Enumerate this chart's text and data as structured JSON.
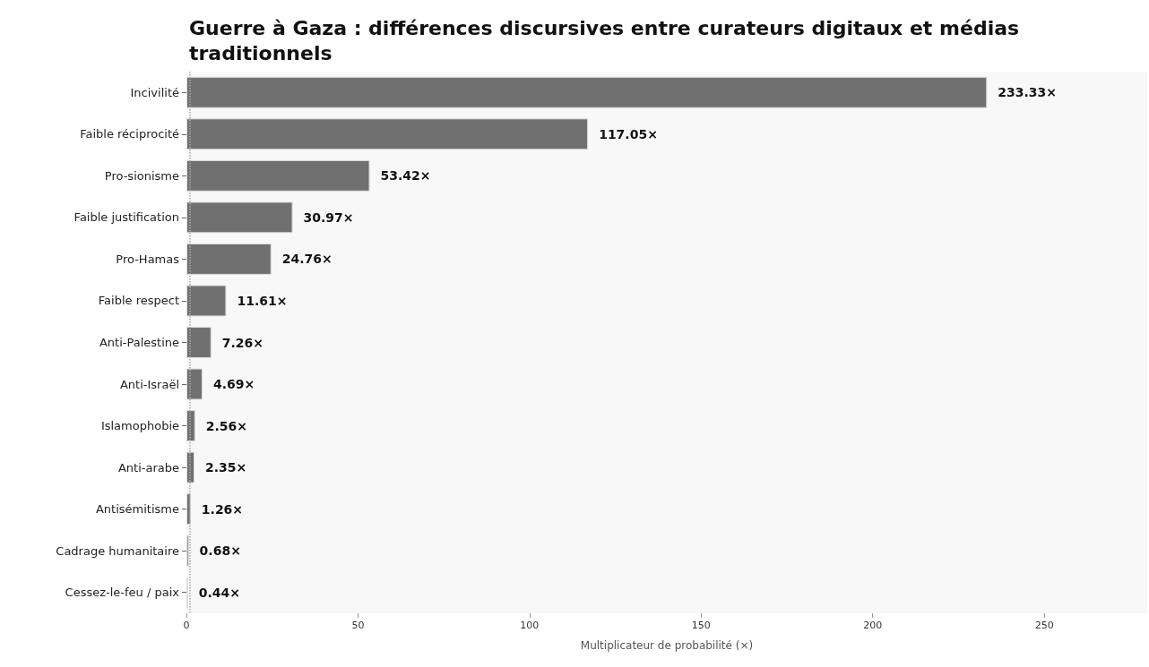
{
  "chart_data": {
    "type": "bar",
    "orientation": "horizontal",
    "title": "Guerre à Gaza : différences discursives entre curateurs digitaux et médias traditionnels",
    "xlabel": "Multiplicateur de probabilité (×)",
    "categories": [
      "Incivilité",
      "Faible réciprocité",
      "Pro-sionisme",
      "Faible justification",
      "Pro-Hamas",
      "Faible respect",
      "Anti-Palestine",
      "Anti-Israël",
      "Islamophobie",
      "Anti-arabe",
      "Antisémitisme",
      "Cadrage humanitaire",
      "Cessez-le-feu / paix"
    ],
    "values": [
      233.33,
      117.05,
      53.42,
      30.97,
      24.76,
      11.61,
      7.26,
      4.69,
      2.56,
      2.35,
      1.26,
      0.68,
      0.44
    ],
    "value_labels": [
      "233.33×",
      "117.05×",
      "53.42×",
      "30.97×",
      "24.76×",
      "11.61×",
      "7.26×",
      "4.69×",
      "2.56×",
      "2.35×",
      "1.26×",
      "0.68×",
      "0.44×"
    ],
    "color": "#707070",
    "xlim": [
      0,
      280
    ],
    "xticks": [
      0,
      50,
      100,
      150,
      200,
      250
    ],
    "ref_lines": [
      {
        "axis": "x",
        "value": 1,
        "color": "#aaaaaa",
        "line_style": "dotted"
      }
    ],
    "grid": false
  }
}
